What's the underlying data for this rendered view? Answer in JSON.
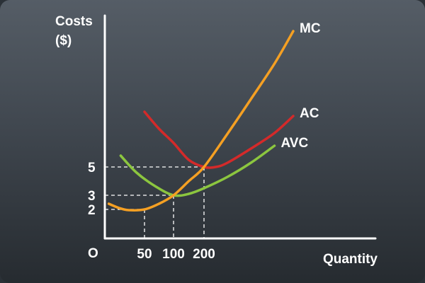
{
  "chart_data": {
    "type": "line",
    "title": "",
    "ylabel_line1": "Costs",
    "ylabel_line2": "($)",
    "xlabel": "Quantity",
    "origin_label": "O",
    "x_ticks": [
      50,
      100,
      200
    ],
    "y_ticks": [
      2,
      3,
      5
    ],
    "grid": false,
    "series": [
      {
        "name": "MC",
        "color": "#f5a023",
        "points": [
          [
            5,
            2.4
          ],
          [
            18,
            2.1
          ],
          [
            30,
            1.95
          ],
          [
            50,
            2.0
          ],
          [
            75,
            2.4
          ],
          [
            100,
            3.0
          ],
          [
            150,
            4.0
          ],
          [
            200,
            5.0
          ],
          [
            300,
            7.35
          ],
          [
            400,
            9.8
          ],
          [
            500,
            12.3
          ],
          [
            580,
            14.6
          ]
        ]
      },
      {
        "name": "AC",
        "color": "#d42a2a",
        "points": [
          [
            50,
            8.9
          ],
          [
            75,
            7.7
          ],
          [
            100,
            6.7
          ],
          [
            150,
            5.5
          ],
          [
            200,
            5.0
          ],
          [
            250,
            5.0
          ],
          [
            300,
            5.3
          ],
          [
            400,
            6.3
          ],
          [
            500,
            7.4
          ],
          [
            580,
            8.6
          ]
        ]
      },
      {
        "name": "AVC",
        "color": "#8cc63f",
        "points": [
          [
            20,
            5.8
          ],
          [
            40,
            4.6
          ],
          [
            70,
            3.6
          ],
          [
            100,
            3.0
          ],
          [
            150,
            3.1
          ],
          [
            200,
            3.5
          ],
          [
            300,
            4.3
          ],
          [
            400,
            5.3
          ],
          [
            500,
            6.5
          ]
        ]
      }
    ],
    "guides": [
      {
        "x": 50,
        "y": 2
      },
      {
        "x": 100,
        "y": 3
      },
      {
        "x": 200,
        "y": 5
      }
    ]
  }
}
